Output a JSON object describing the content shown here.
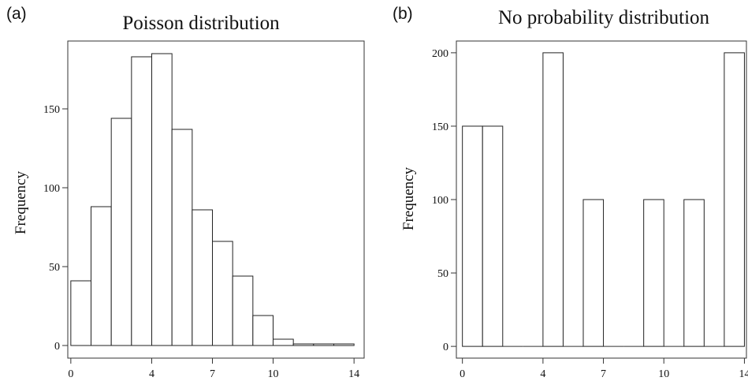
{
  "chart_data": [
    {
      "type": "bar",
      "panel": "(a)",
      "title": "Poisson distribution",
      "ylabel": "Frequency",
      "xlabel": "",
      "bin_width": 1,
      "bin_starts": [
        0,
        1,
        2,
        3,
        4,
        5,
        6,
        7,
        8,
        9,
        10,
        11,
        12,
        13
      ],
      "values": [
        41,
        88,
        144,
        183,
        185,
        137,
        86,
        66,
        44,
        19,
        4,
        1,
        1,
        1
      ],
      "xlim": [
        -0.15,
        14.5
      ],
      "ylim": [
        -8,
        193
      ],
      "xticks": [
        0,
        4,
        7,
        10,
        14
      ],
      "yticks": [
        0,
        50,
        100,
        150
      ],
      "grid": false,
      "legend": "none"
    },
    {
      "type": "bar",
      "panel": "(b)",
      "title": "No probability distribution",
      "ylabel": "Frequency",
      "xlabel": "",
      "bin_width": 1,
      "bin_starts": [
        0,
        1,
        2,
        3,
        4,
        5,
        6,
        7,
        8,
        9,
        10,
        11,
        12,
        13
      ],
      "values": [
        150,
        150,
        0,
        0,
        200,
        0,
        100,
        0,
        0,
        100,
        0,
        100,
        0,
        200
      ],
      "xlim": [
        -0.3,
        14.1
      ],
      "ylim": [
        -8,
        208
      ],
      "xticks": [
        0,
        4,
        7,
        10,
        14
      ],
      "yticks": [
        0,
        50,
        100,
        150,
        200
      ],
      "grid": false,
      "legend": "none"
    }
  ]
}
